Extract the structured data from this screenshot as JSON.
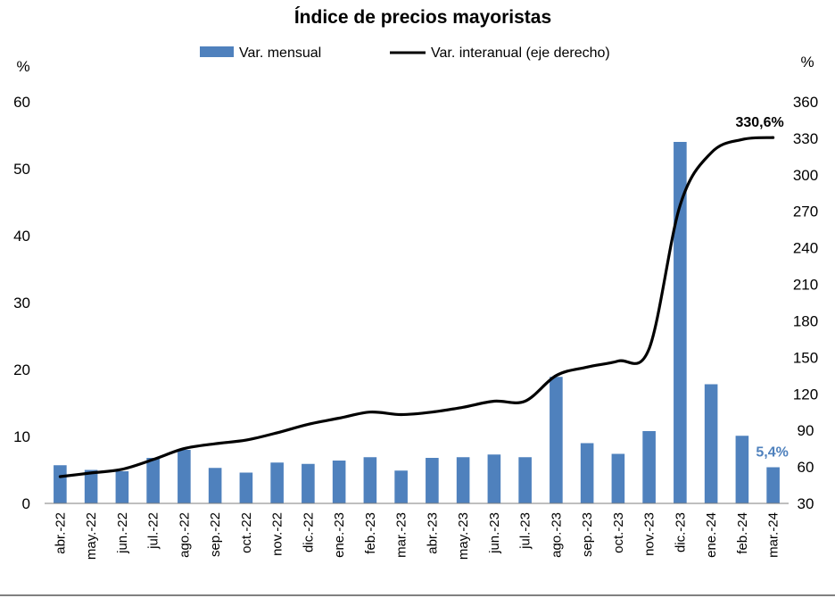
{
  "chart_data": {
    "type": "bar+line",
    "title": "Índice de precios mayoristas",
    "categories": [
      "abr.-22",
      "may.-22",
      "jun.-22",
      "jul.-22",
      "ago.-22",
      "sep.-22",
      "oct.-22",
      "nov.-22",
      "dic.-22",
      "ene.-23",
      "feb.-23",
      "mar.-23",
      "abr.-23",
      "may.-23",
      "jun.-23",
      "jul.-23",
      "ago.-23",
      "sep.-23",
      "oct.-23",
      "nov.-23",
      "dic.-23",
      "ene.-24",
      "feb.-24",
      "mar.-24"
    ],
    "series": [
      {
        "name": "Var. mensual",
        "type": "bar",
        "axis": "left",
        "color": "#4F81BD",
        "values": [
          5.7,
          5.0,
          4.8,
          6.8,
          8.0,
          5.3,
          4.6,
          6.1,
          5.9,
          6.4,
          6.9,
          4.9,
          6.8,
          6.9,
          7.3,
          6.9,
          18.9,
          9.0,
          7.4,
          10.8,
          54.0,
          17.8,
          10.1,
          5.4
        ]
      },
      {
        "name": "Var. interanual (eje derecho)",
        "type": "line",
        "axis": "right",
        "color": "#000000",
        "values": [
          52,
          55,
          58,
          66,
          75,
          79,
          82,
          88,
          95,
          100,
          105,
          103,
          105,
          109,
          114,
          114,
          135,
          142,
          147,
          157,
          275,
          318,
          329,
          330.6
        ]
      }
    ],
    "y_left": {
      "unit": "%",
      "ylim": [
        0,
        60
      ],
      "ticks": [
        0,
        10,
        20,
        30,
        40,
        50,
        60
      ]
    },
    "y_right": {
      "unit": "%",
      "ylim": [
        30,
        360
      ],
      "ticks": [
        30,
        60,
        90,
        120,
        150,
        180,
        210,
        240,
        270,
        300,
        330,
        360
      ]
    },
    "legend_position": "top-center",
    "grid": false,
    "annotations": [
      {
        "text": "330,6%",
        "series": 1,
        "index": 23,
        "color": "#000000"
      },
      {
        "text": "5,4%",
        "series": 0,
        "index": 23,
        "color": "#4F81BD"
      }
    ]
  }
}
